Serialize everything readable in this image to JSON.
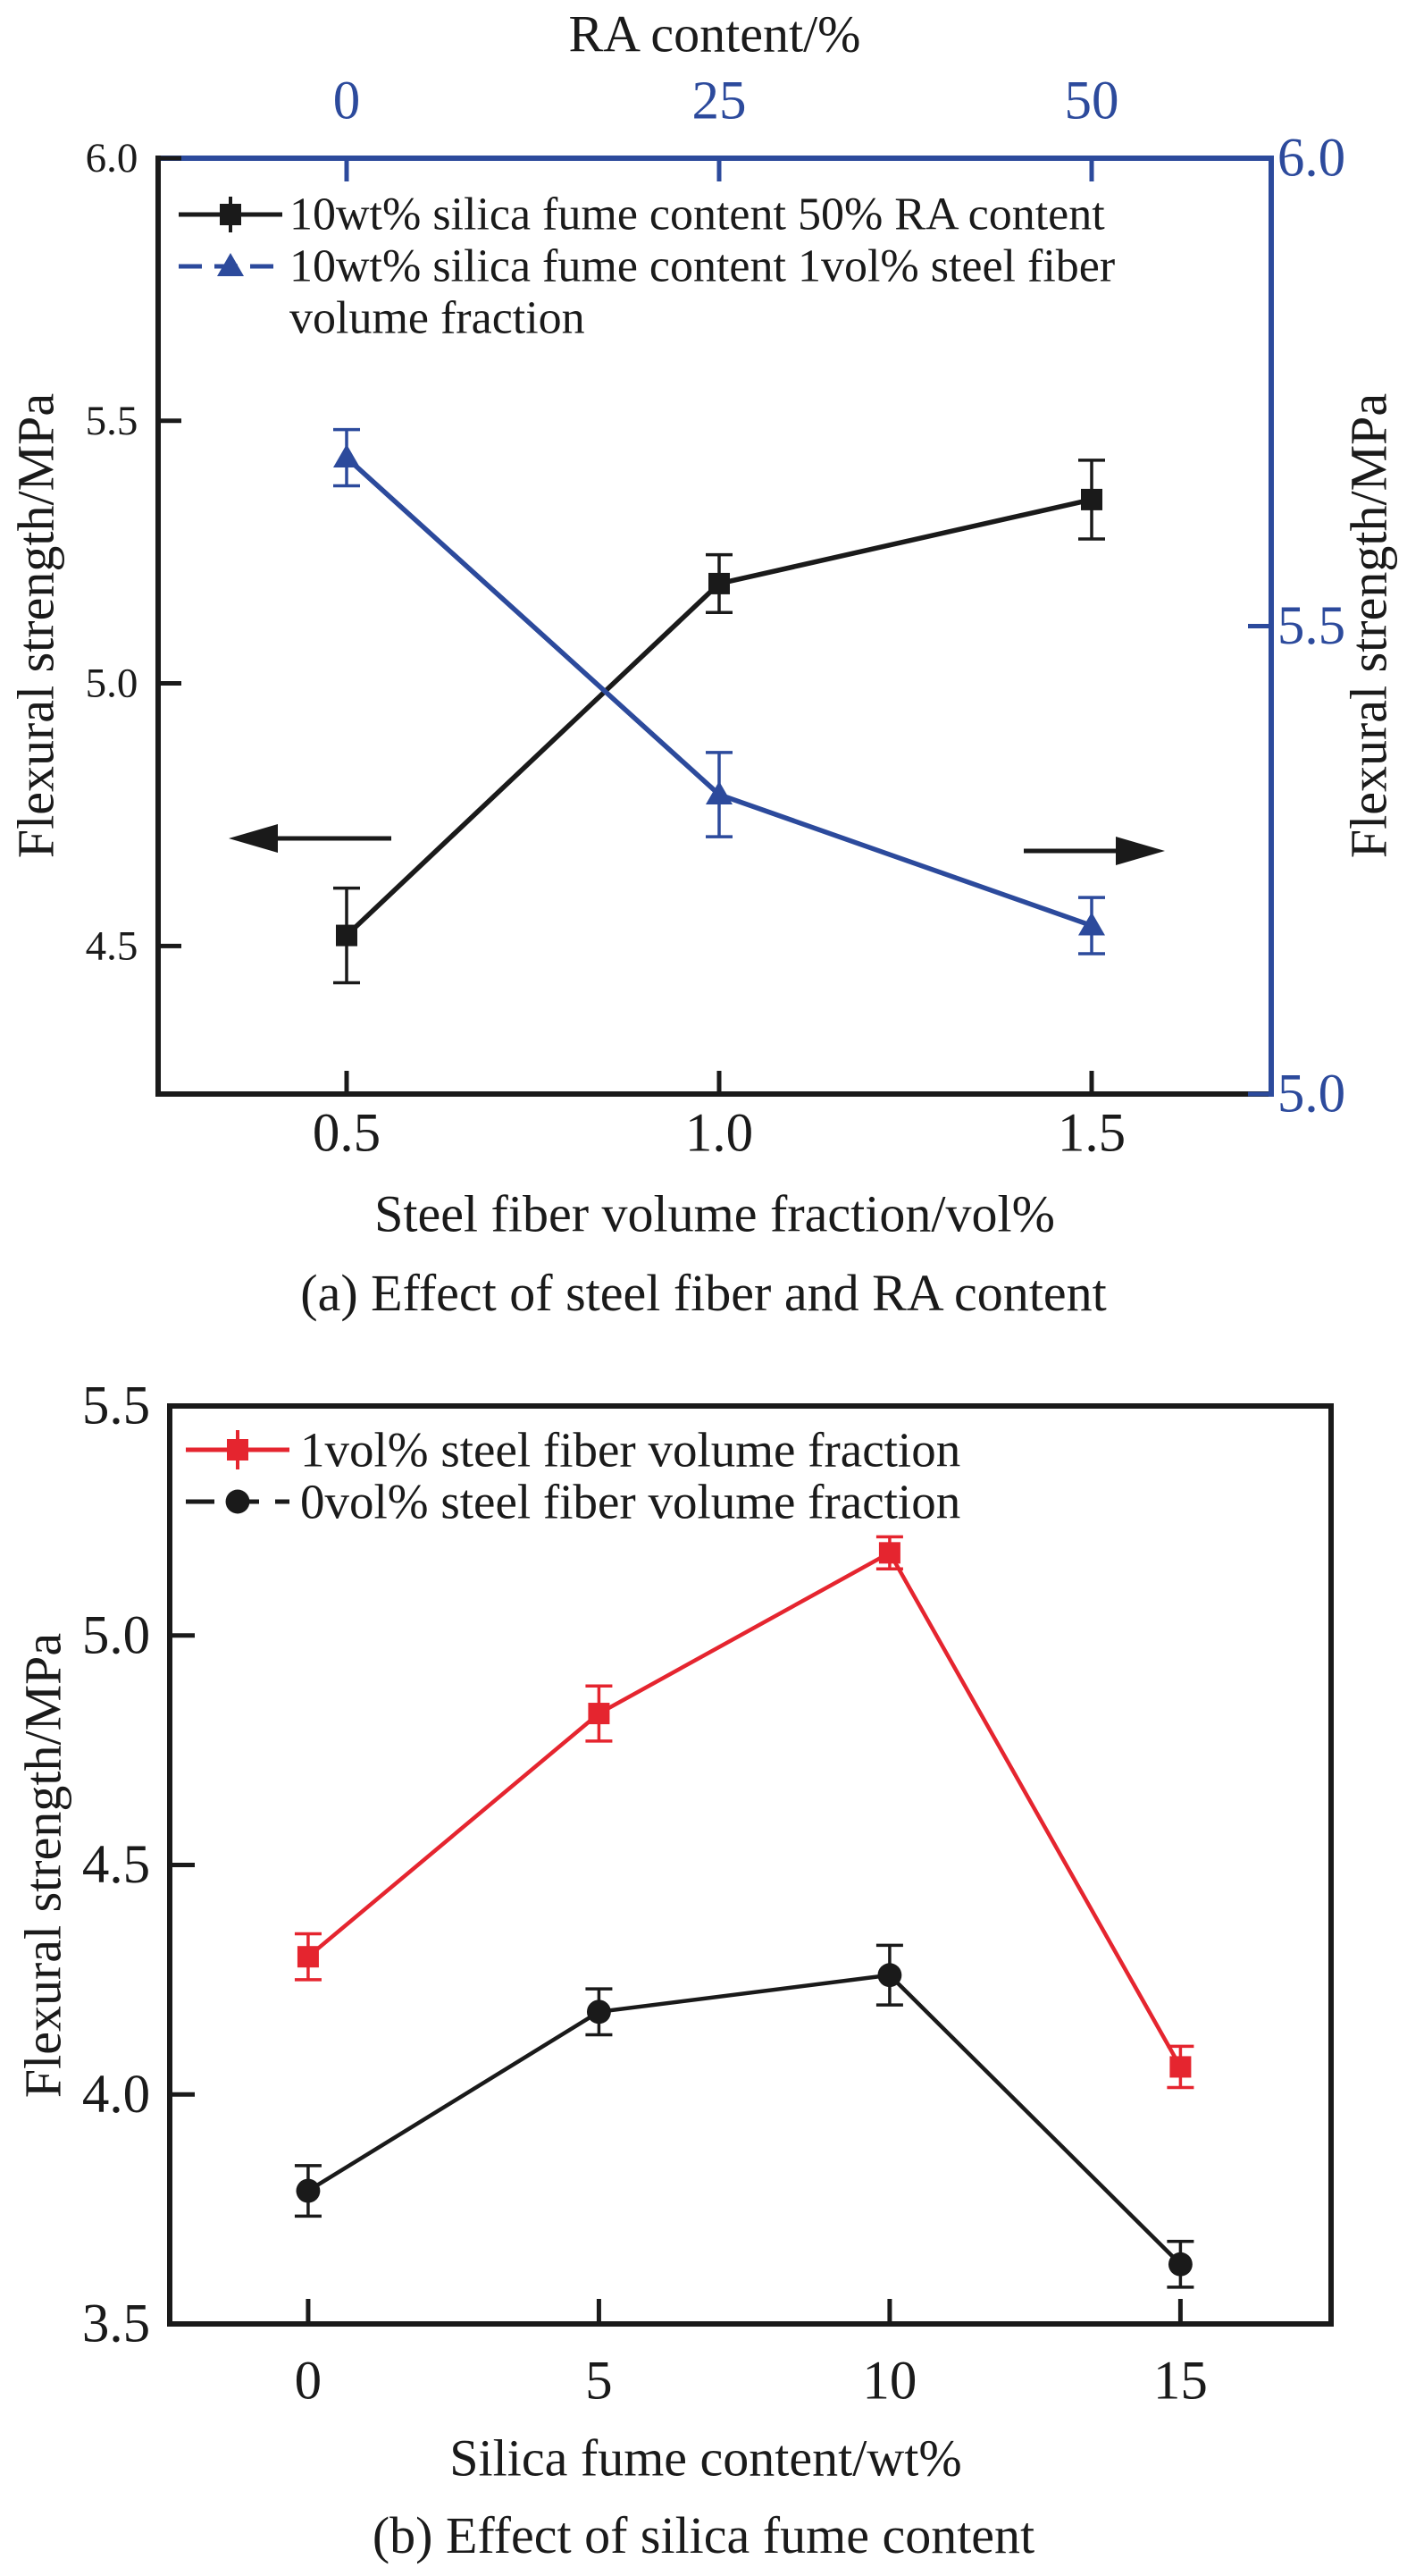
{
  "figure": {
    "background": "#ffffff",
    "colors": {
      "black": "#1a1a1a",
      "blue": "#2c4a9c",
      "red": "#e5252f"
    }
  },
  "chart_data": [
    {
      "id": "a",
      "type": "line",
      "caption": "(a) Effect of steel fiber and RA content",
      "axes": {
        "top": {
          "title": "RA content/%",
          "title_color": "black",
          "color": "blue",
          "label_color": "blue",
          "ticks": [
            0,
            25,
            50
          ],
          "tick_labels": [
            "0",
            "25",
            "50"
          ],
          "range": [
            -12.65,
            62.05
          ]
        },
        "bottom": {
          "title": "Steel fiber volume fraction/vol%",
          "color": "black",
          "label_color": "black",
          "ticks": [
            0.5,
            1.0,
            1.5
          ],
          "tick_labels": [
            "0.5",
            "1.0",
            "1.5"
          ],
          "range": [
            0.247,
            1.741
          ]
        },
        "left": {
          "title": "Flexural strength/MPa",
          "color": "black",
          "label_color": "black",
          "ticks": [
            6.0,
            5.5,
            5.0,
            4.5
          ],
          "tick_labels": [
            "6.0",
            "5.5",
            "5.0",
            "4.5"
          ],
          "range": [
            4.218,
            6.0
          ]
        },
        "right": {
          "title": "Flexural strength/MPa",
          "title_color": "black",
          "color": "blue",
          "label_color": "blue",
          "ticks": [
            6.0,
            5.5,
            5.0
          ],
          "tick_labels": [
            "6.0",
            "5.5",
            "5.0"
          ],
          "range": [
            5.0,
            6.0
          ]
        }
      },
      "series": [
        {
          "name": "10wt% silica fume content 50% RA content",
          "color": "black",
          "marker": "square",
          "x_axis": "bottom",
          "y_axis": "left",
          "x": [
            0.5,
            1.0,
            1.5
          ],
          "y": [
            4.52,
            5.19,
            5.35
          ],
          "err": [
            0.09,
            0.055,
            0.075
          ]
        },
        {
          "name": "10wt% silica fume content 1vol% steel fiber volume fraction",
          "color": "blue",
          "marker": "triangle",
          "x_axis": "top",
          "y_axis": "right",
          "x": [
            0,
            25,
            50
          ],
          "y": [
            5.68,
            5.32,
            5.18
          ],
          "err": [
            0.03,
            0.045,
            0.03
          ]
        }
      ],
      "legend": {
        "position": "top-left",
        "rows": [
          {
            "label": "10wt% silica fume content 50% RA content",
            "series": 0
          },
          {
            "label": "10wt% silica fume content 1vol% steel fiber",
            "series": 1
          },
          {
            "label": "volume fraction",
            "series": null
          }
        ]
      },
      "annotations": [
        {
          "type": "arrow",
          "direction": "left",
          "meaning": "black series reads on left axis"
        },
        {
          "type": "arrow",
          "direction": "right",
          "meaning": "blue series reads on right axis"
        }
      ]
    },
    {
      "id": "b",
      "type": "line",
      "caption": "(b) Effect of silica fume content",
      "axes": {
        "top": {
          "color": "black",
          "ticks": [],
          "tick_labels": [],
          "range": [
            0,
            1
          ]
        },
        "bottom": {
          "title": "Silica fume content/wt%",
          "color": "black",
          "label_color": "black",
          "ticks": [
            0,
            5,
            10,
            15
          ],
          "tick_labels": [
            "0",
            "5",
            "10",
            "15"
          ],
          "range": [
            -2.38,
            17.59
          ]
        },
        "left": {
          "title": "Flexural strength/MPa",
          "color": "black",
          "label_color": "black",
          "ticks": [
            5.5,
            5.0,
            4.5,
            4.0,
            3.5
          ],
          "tick_labels": [
            "5.5",
            "5.0",
            "4.5",
            "4.0",
            "3.5"
          ],
          "range": [
            3.5,
            5.5
          ]
        },
        "right": {
          "color": "black",
          "ticks": [],
          "tick_labels": [],
          "range": [
            0,
            1
          ]
        }
      },
      "series": [
        {
          "name": "1vol% steel fiber volume fraction",
          "color": "red",
          "marker": "square",
          "x_axis": "bottom",
          "y_axis": "left",
          "x": [
            0,
            5,
            10,
            15
          ],
          "y": [
            4.3,
            4.83,
            5.18,
            4.06
          ],
          "err": [
            0.05,
            0.06,
            0.035,
            0.045
          ]
        },
        {
          "name": "0vol% steel fiber volume fraction",
          "color": "black",
          "marker": "circle",
          "x_axis": "bottom",
          "y_axis": "left",
          "x": [
            0,
            5,
            10,
            15
          ],
          "y": [
            3.79,
            4.18,
            4.26,
            3.63
          ],
          "err": [
            0.055,
            0.05,
            0.065,
            0.05
          ]
        }
      ],
      "legend": {
        "position": "top-left",
        "rows": [
          {
            "label": "1vol% steel fiber volume fraction",
            "series": 0
          },
          {
            "label": "0vol% steel fiber volume fraction",
            "series": 1
          }
        ]
      }
    }
  ]
}
